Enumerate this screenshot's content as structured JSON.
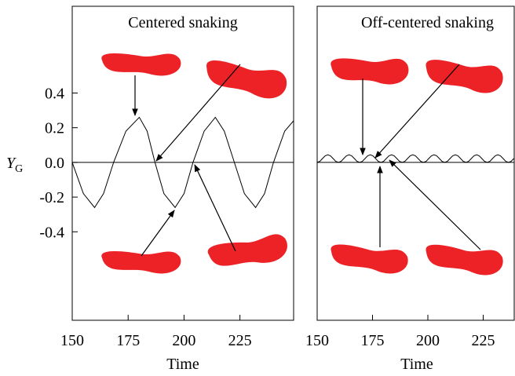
{
  "chart_data": [
    {
      "type": "line",
      "title": "Centered snaking",
      "xlabel": "Time",
      "ylabel": {
        "main": "Y",
        "sub": "G"
      },
      "xlim": [
        150,
        249
      ],
      "ylim": [
        -0.91,
        0.9
      ],
      "xticks": [
        150,
        175,
        200,
        225
      ],
      "yticks": [
        0.4,
        0.2,
        {
          "value": 0,
          "label": "0.0"
        },
        -0.2,
        -0.4
      ],
      "color": "#000000",
      "x": [
        150,
        155,
        160,
        164,
        168.5,
        174,
        180,
        183.5,
        187,
        191,
        196,
        200,
        204,
        209,
        214,
        218,
        222.5,
        227,
        232,
        236,
        240,
        245,
        249
      ],
      "values": [
        0,
        -0.18,
        -0.26,
        -0.18,
        0,
        0.18,
        0.26,
        0.18,
        0,
        -0.18,
        -0.26,
        -0.18,
        0,
        0.18,
        0.26,
        0.18,
        0,
        -0.18,
        -0.26,
        -0.18,
        0,
        0.18,
        0.24
      ]
    },
    {
      "type": "line",
      "title": "Off-centered snaking",
      "xlabel": "Time",
      "xlim": [
        150,
        239
      ],
      "ylim": [
        -0.91,
        0.9
      ],
      "xticks": [
        150,
        175,
        200,
        225
      ],
      "color": "#000000",
      "x": [
        150,
        151.2,
        152.4,
        153.6,
        154.8,
        156,
        157.2,
        158.4,
        159.6,
        160.8,
        162,
        163.2,
        164.4,
        165.6,
        166.8,
        168,
        169.2,
        170.4,
        171.6,
        172.8,
        174,
        175.2,
        176.4,
        177.6,
        178.8,
        180,
        181.2,
        182.4,
        183.6,
        184.8,
        186,
        187.2,
        188.4,
        189.6,
        190.8,
        192,
        193.2,
        194.4,
        195.6,
        196.8,
        198,
        199.2,
        200.4,
        201.6,
        202.8,
        204,
        205.2,
        206.4,
        207.6,
        208.8,
        210,
        211.2,
        212.4,
        213.6,
        214.8,
        216,
        217.2,
        218.4,
        219.6,
        220.8,
        222,
        223.2,
        224.4,
        225.6,
        226.8,
        228,
        229.2,
        230.4,
        231.6,
        232.8,
        234,
        235.2,
        236.4,
        237.6,
        238.8
      ],
      "values": [
        0,
        0.006,
        0.022,
        0.038,
        0.044,
        0.038,
        0.022,
        0.006,
        0,
        0.006,
        0.022,
        0.038,
        0.044,
        0.038,
        0.022,
        0.006,
        0,
        0.006,
        0.022,
        0.038,
        0.044,
        0.038,
        0.022,
        0.006,
        0,
        0.006,
        0.022,
        0.038,
        0.044,
        0.038,
        0.022,
        0.006,
        0,
        0.006,
        0.022,
        0.038,
        0.044,
        0.038,
        0.022,
        0.006,
        0,
        0.006,
        0.022,
        0.038,
        0.044,
        0.038,
        0.022,
        0.006,
        0,
        0.006,
        0.022,
        0.038,
        0.044,
        0.038,
        0.022,
        0.006,
        0,
        0.006,
        0.022,
        0.038,
        0.044,
        0.038,
        0.022,
        0.006,
        0,
        0.006,
        0.022,
        0.038,
        0.044,
        0.038,
        0.022,
        0.006,
        0,
        0.006,
        0.022
      ]
    }
  ]
}
